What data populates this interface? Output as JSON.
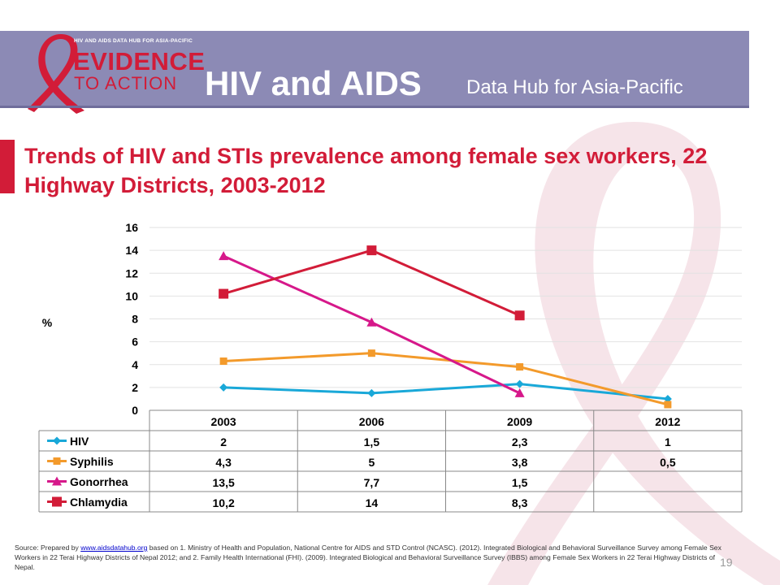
{
  "header": {
    "logo_small": "HIV AND AIDS DATA HUB FOR ASIA-PACIFIC",
    "logo_big": "EVIDENCE",
    "logo_sub": "TO ACTION",
    "hub_title": "HIV and AIDS",
    "hub_subtitle": "Data Hub for Asia-Pacific"
  },
  "slide": {
    "title": "Trends of HIV and STIs prevalence among female sex workers, 22 Highway Districts, 2003-2012",
    "number": "19"
  },
  "source": {
    "prefix": "Source: Prepared by ",
    "link_text": "www.aidsdatahub.org",
    "rest": " based on 1. Ministry of Health and Population, National Centre for AIDS and STD Control (NCASC). (2012). Integrated Biological and Behavioral Surveillance Survey among Female Sex Workers in 22 Terai Highway Districts of Nepal 2012; and 2. Family Health International (FHI). (2009). Integrated Biological and Behavioral Surveillance Survey (IBBS) among Female Sex Workers in 22 Terai Highway Districts of Nepal."
  },
  "colors": {
    "accent": "#d21c38",
    "header": "#8c8ab5",
    "ribbon": "#f4dde4"
  },
  "chart_data": {
    "type": "line",
    "ylabel": "%",
    "ylim": [
      0,
      16
    ],
    "yticks": [
      0,
      2,
      4,
      6,
      8,
      10,
      12,
      14,
      16
    ],
    "categories": [
      "2003",
      "2006",
      "2009",
      "2012"
    ],
    "grid": true,
    "legend": "data-table",
    "series": [
      {
        "name": "HIV",
        "color": "#19a8d8",
        "marker": "diamond",
        "values": [
          2,
          1.5,
          2.3,
          1
        ],
        "labels": [
          "2",
          "1,5",
          "2,3",
          "1"
        ]
      },
      {
        "name": "Syphilis",
        "color": "#f39a2b",
        "marker": "square",
        "values": [
          4.3,
          5,
          3.8,
          0.5
        ],
        "labels": [
          "4,3",
          "5",
          "3,8",
          "0,5"
        ]
      },
      {
        "name": "Gonorrhea",
        "color": "#d6188a",
        "marker": "triangle",
        "values": [
          13.5,
          7.7,
          1.5,
          null
        ],
        "labels": [
          "13,5",
          "7,7",
          "1,5",
          ""
        ]
      },
      {
        "name": "Chlamydia",
        "color": "#d21c38",
        "marker": "square",
        "values": [
          10.2,
          14,
          8.3,
          null
        ],
        "labels": [
          "10,2",
          "14",
          "8,3",
          ""
        ]
      }
    ]
  }
}
